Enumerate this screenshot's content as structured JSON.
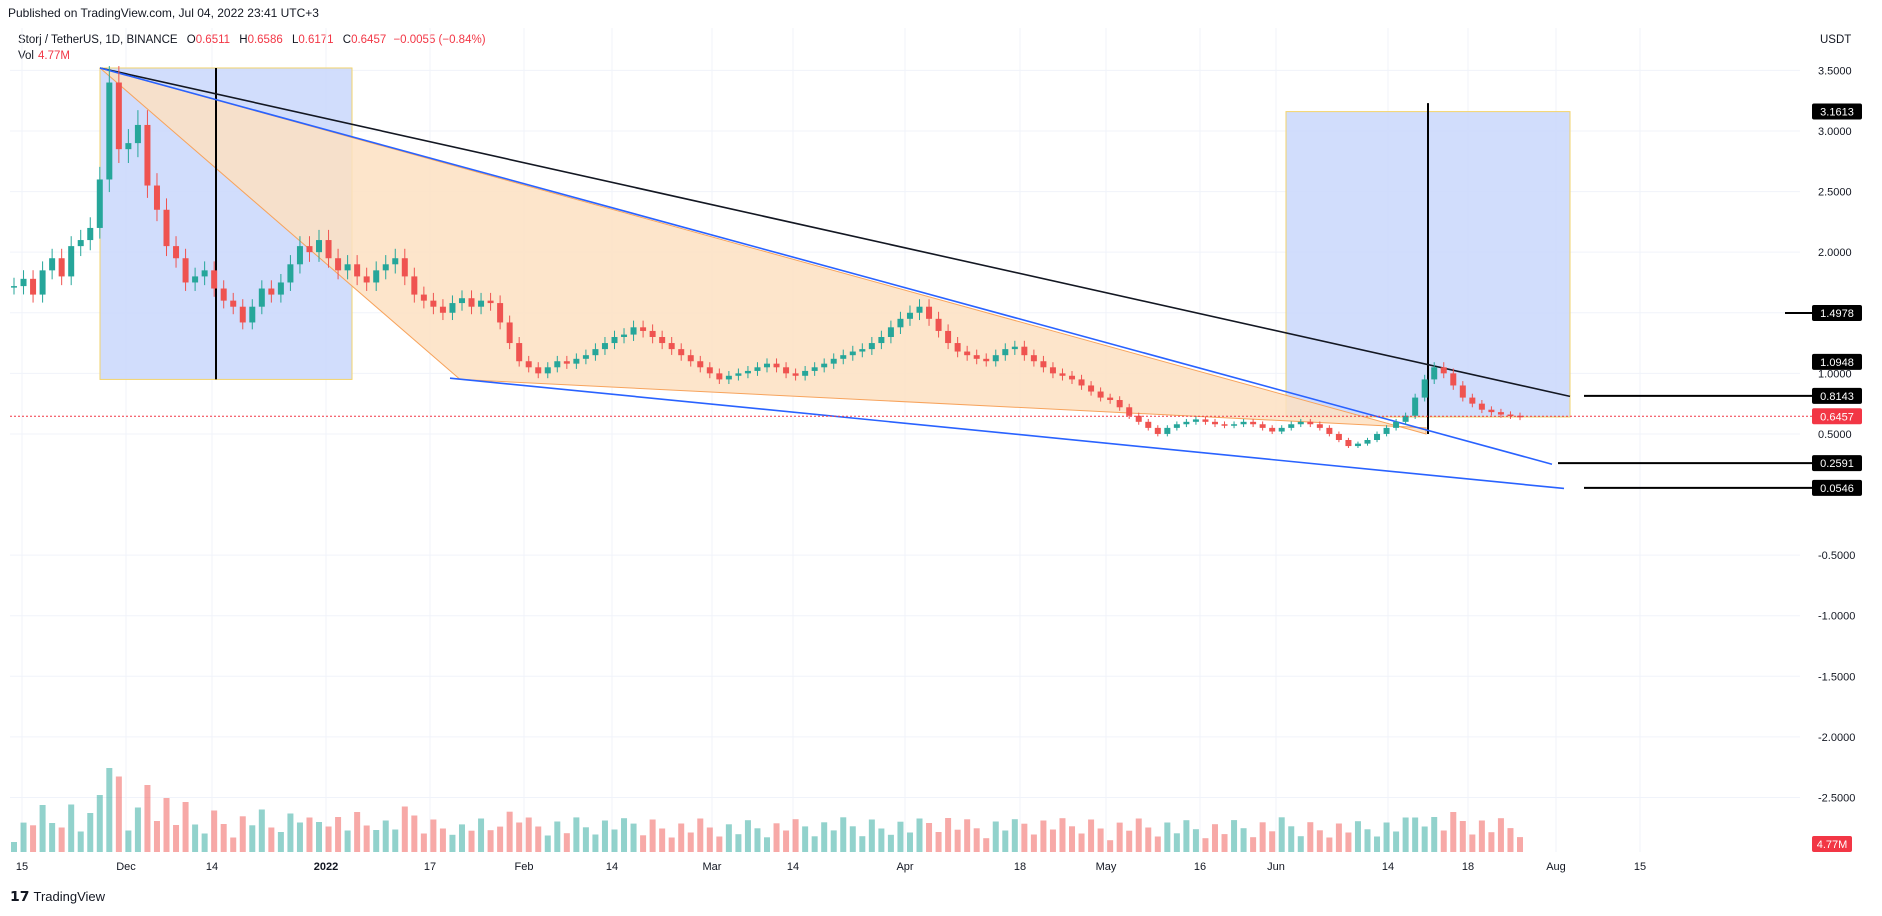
{
  "header": {
    "published": "Published on TradingView.com, Jul 04, 2022 23:41 UTC+3"
  },
  "legend": {
    "symbol": "Storj / TetherUS, 1D, BINANCE",
    "o_label": "O",
    "o_value": "0.6511",
    "h_label": "H",
    "h_value": "0.6586",
    "l_label": "L",
    "l_value": "0.6171",
    "c_label": "C",
    "c_value": "0.6457",
    "change": "−0.0055 (−0.84%)",
    "vol_label": "Vol",
    "vol_value": "4.77M"
  },
  "currency": "USDT",
  "footer": {
    "logo_glyph": "𝟭𝟳",
    "brand": "TradingView"
  },
  "colors": {
    "up": "#26a69a",
    "down": "#ef5350",
    "vol_up": "#26a69a80",
    "vol_down": "#ef535080",
    "box_blue": "#c9d7fb",
    "box_orange": "#fde0c2",
    "line_blue": "#2962ff",
    "last_price": "#f23645"
  },
  "chart_data": {
    "type": "candlestick",
    "x_ticks": [
      "15",
      "Dec",
      "14",
      "2022",
      "17",
      "Feb",
      "14",
      "Mar",
      "14",
      "Apr",
      "18",
      "May",
      "16",
      "Jun",
      "14",
      "18",
      "Aug",
      "15"
    ],
    "y_ticks": [
      "3.5000",
      "3.0000",
      "2.5000",
      "2.0000",
      "1.5000",
      "1.0000",
      "0.5000",
      "-0.5000",
      "-1.0000",
      "-1.5000",
      "-2.0000",
      "-2.5000"
    ],
    "ylim": [
      -2.95,
      3.85
    ],
    "price_labels": [
      "3.1613",
      "1.4978",
      "1.0948",
      "0.8143",
      "0.6457",
      "0.2591",
      "0.0546"
    ],
    "volume_label": "4.77M",
    "closes": [
      1.72,
      1.78,
      1.65,
      1.85,
      1.95,
      1.8,
      2.05,
      2.1,
      2.2,
      2.6,
      3.4,
      2.85,
      2.9,
      3.05,
      2.55,
      2.35,
      2.05,
      1.95,
      1.75,
      1.8,
      1.85,
      1.7,
      1.6,
      1.55,
      1.42,
      1.55,
      1.7,
      1.65,
      1.75,
      1.9,
      2.05,
      2.0,
      2.1,
      1.95,
      1.85,
      1.9,
      1.8,
      1.75,
      1.85,
      1.9,
      1.95,
      1.8,
      1.65,
      1.6,
      1.55,
      1.5,
      1.58,
      1.62,
      1.55,
      1.6,
      1.58,
      1.42,
      1.25,
      1.1,
      1.05,
      1.0,
      1.05,
      1.1,
      1.08,
      1.12,
      1.15,
      1.2,
      1.25,
      1.3,
      1.32,
      1.38,
      1.35,
      1.3,
      1.25,
      1.2,
      1.15,
      1.1,
      1.05,
      1.0,
      0.95,
      0.98,
      1.0,
      1.02,
      1.05,
      1.08,
      1.05,
      1.0,
      0.98,
      1.02,
      1.05,
      1.08,
      1.12,
      1.15,
      1.18,
      1.2,
      1.25,
      1.3,
      1.38,
      1.45,
      1.5,
      1.55,
      1.45,
      1.35,
      1.25,
      1.18,
      1.15,
      1.12,
      1.1,
      1.15,
      1.2,
      1.22,
      1.15,
      1.1,
      1.05,
      1.0,
      0.98,
      0.95,
      0.9,
      0.85,
      0.8,
      0.78,
      0.72,
      0.65,
      0.6,
      0.55,
      0.5,
      0.55,
      0.58,
      0.6,
      0.62,
      0.6,
      0.58,
      0.57,
      0.58,
      0.6,
      0.58,
      0.55,
      0.52,
      0.55,
      0.58,
      0.6,
      0.58,
      0.55,
      0.5,
      0.45,
      0.4,
      0.42,
      0.45,
      0.5,
      0.55,
      0.6,
      0.65,
      0.8,
      0.95,
      1.05,
      1.0,
      0.9,
      0.8,
      0.75,
      0.7,
      0.68,
      0.66,
      0.65,
      0.64
    ]
  }
}
